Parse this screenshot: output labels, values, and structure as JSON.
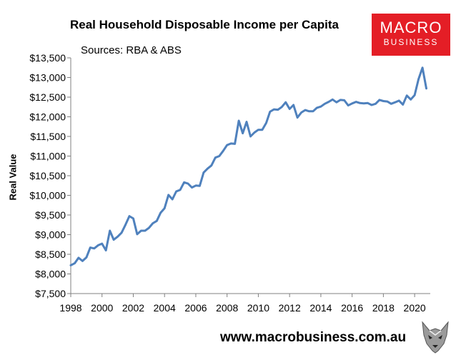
{
  "title": "Real Household Disposable Income per Capita",
  "subtitle": "Sources: RBA & ABS",
  "logo": {
    "line1": "MACRO",
    "line2": "BUSINESS",
    "color": "#e41e26"
  },
  "footer": {
    "url": "www.macrobusiness.com.au",
    "icon": "wolf-head-icon"
  },
  "chart_data": {
    "type": "line",
    "title": "Real Household Disposable Income per Capita",
    "xlabel": "",
    "ylabel": "Real Value",
    "xlim": [
      1998,
      2021
    ],
    "ylim": [
      7500,
      13500
    ],
    "x_ticks": [
      "1998",
      "2000",
      "2002",
      "2004",
      "2006",
      "2008",
      "2010",
      "2012",
      "2014",
      "2016",
      "2018",
      "2020"
    ],
    "y_ticks": [
      "$7,500",
      "$8,000",
      "$8,500",
      "$9,000",
      "$9,500",
      "$10,000",
      "$10,500",
      "$11,000",
      "$11,500",
      "$12,000",
      "$12,500",
      "$13,000",
      "$13,500"
    ],
    "grid": false,
    "line_color": "#4f81bd",
    "series": [
      {
        "x": [
          1998.0,
          1998.25,
          1998.5,
          1998.75,
          1999.0,
          1999.25,
          1999.5,
          1999.75,
          2000.0,
          2000.25,
          2000.5,
          2000.75,
          2001.0,
          2001.25,
          2001.5,
          2001.75,
          2002.0,
          2002.25,
          2002.5,
          2002.75,
          2003.0,
          2003.25,
          2003.5,
          2003.75,
          2004.0,
          2004.25,
          2004.5,
          2004.75,
          2005.0,
          2005.25,
          2005.5,
          2005.75,
          2006.0,
          2006.25,
          2006.5,
          2006.75,
          2007.0,
          2007.25,
          2007.5,
          2007.75,
          2008.0,
          2008.25,
          2008.5,
          2008.75,
          2009.0,
          2009.25,
          2009.5,
          2009.75,
          2010.0,
          2010.25,
          2010.5,
          2010.75,
          2011.0,
          2011.25,
          2011.5,
          2011.75,
          2012.0,
          2012.25,
          2012.5,
          2012.75,
          2013.0,
          2013.25,
          2013.5,
          2013.75,
          2014.0,
          2014.25,
          2014.5,
          2014.75,
          2015.0,
          2015.25,
          2015.5,
          2015.75,
          2016.0,
          2016.25,
          2016.5,
          2016.75,
          2017.0,
          2017.25,
          2017.5,
          2017.75,
          2018.0,
          2018.25,
          2018.5,
          2018.75,
          2019.0,
          2019.25,
          2019.5,
          2019.75,
          2020.0,
          2020.25,
          2020.5,
          2020.75
        ],
        "values": [
          8220,
          8270,
          8410,
          8330,
          8420,
          8670,
          8650,
          8730,
          8770,
          8600,
          9100,
          8870,
          8950,
          9050,
          9250,
          9470,
          9410,
          9010,
          9100,
          9100,
          9170,
          9290,
          9350,
          9560,
          9670,
          10010,
          9900,
          10100,
          10140,
          10330,
          10300,
          10200,
          10250,
          10240,
          10580,
          10680,
          10760,
          10960,
          11000,
          11130,
          11280,
          11320,
          11310,
          11900,
          11580,
          11870,
          11500,
          11600,
          11670,
          11670,
          11840,
          12130,
          12190,
          12180,
          12250,
          12370,
          12200,
          12300,
          11980,
          12110,
          12170,
          12140,
          12140,
          12230,
          12260,
          12330,
          12380,
          12440,
          12370,
          12430,
          12420,
          12290,
          12340,
          12380,
          12350,
          12340,
          12350,
          12300,
          12330,
          12430,
          12400,
          12390,
          12330,
          12370,
          12410,
          12310,
          12540,
          12440,
          12550,
          12960,
          13250,
          12720
        ]
      }
    ]
  }
}
